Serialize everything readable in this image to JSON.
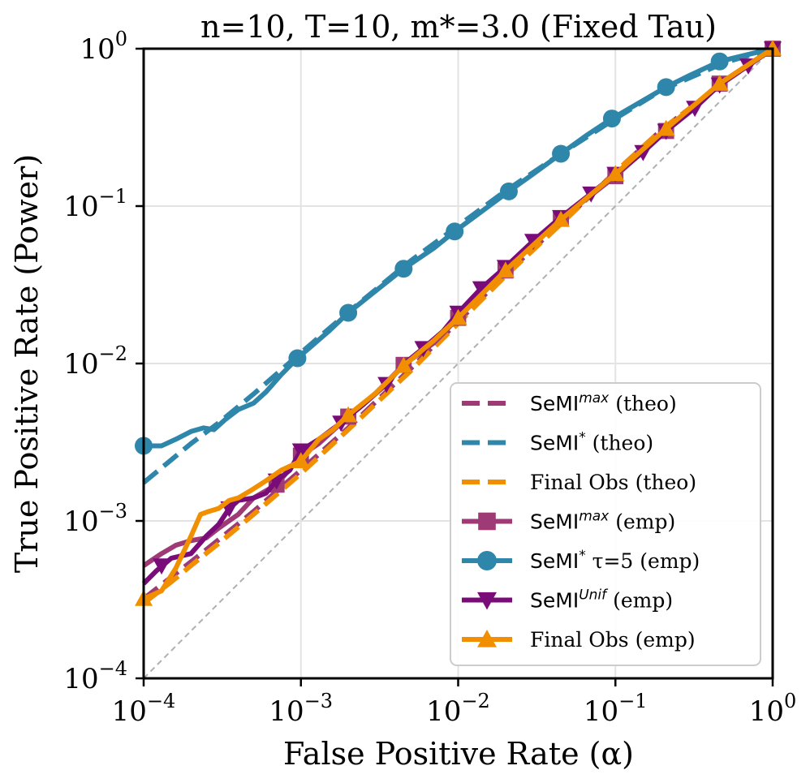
{
  "chart_data": {
    "type": "line",
    "title": "n=10, T=10, m*=3.0 (Fixed Tau)",
    "xlabel": "False Positive Rate (α)",
    "ylabel": "True Positive Rate (Power)",
    "xscale": "log",
    "yscale": "log",
    "xlim": [
      0.0001,
      1
    ],
    "ylim": [
      0.0001,
      1
    ],
    "grid": true,
    "legend_position": "lower-right",
    "x_ticks": [
      {
        "value": 0.0001,
        "base": "10",
        "exp": "−4"
      },
      {
        "value": 0.001,
        "base": "10",
        "exp": "−3"
      },
      {
        "value": 0.01,
        "base": "10",
        "exp": "−2"
      },
      {
        "value": 0.1,
        "base": "10",
        "exp": "−1"
      },
      {
        "value": 1,
        "base": "10",
        "exp": "0"
      }
    ],
    "y_ticks": [
      {
        "value": 0.0001,
        "base": "10",
        "exp": "−4"
      },
      {
        "value": 0.001,
        "base": "10",
        "exp": "−3"
      },
      {
        "value": 0.01,
        "base": "10",
        "exp": "−2"
      },
      {
        "value": 0.1,
        "base": "10",
        "exp": "−1"
      },
      {
        "value": 1,
        "base": "10",
        "exp": "0"
      }
    ],
    "diagonal": {
      "name": "random-guess",
      "color": "#b0b0b0",
      "dash": true
    },
    "series": [
      {
        "id": "semi-max-theo",
        "label_main": "SeMI",
        "label_sup": "max",
        "label_rest": " (theo)",
        "color": "#9e3a75",
        "dash": true,
        "marker": "none",
        "order": 0,
        "x": [
          0.0001,
          0.00015,
          0.0002,
          0.0003,
          0.0005,
          0.001,
          0.002,
          0.005,
          0.01,
          0.02,
          0.05,
          0.1,
          0.2,
          0.5,
          1
        ],
        "y": [
          0.00032,
          0.00044,
          0.00055,
          0.00076,
          0.00115,
          0.0021,
          0.0039,
          0.0093,
          0.0185,
          0.037,
          0.086,
          0.165,
          0.31,
          0.62,
          1
        ]
      },
      {
        "id": "semi-star-theo",
        "label_main": "SeMI",
        "label_sup": "*",
        "label_rest": " (theo)",
        "color": "#2e86ab",
        "dash": true,
        "marker": "none",
        "order": 1,
        "x": [
          0.0001,
          0.0002,
          0.0003,
          0.0005,
          0.001,
          0.002,
          0.005,
          0.01,
          0.02,
          0.05,
          0.1,
          0.2,
          0.5,
          1
        ],
        "y": [
          0.00175,
          0.0031,
          0.0042,
          0.0064,
          0.0117,
          0.0212,
          0.045,
          0.075,
          0.125,
          0.23,
          0.36,
          0.55,
          0.82,
          1
        ]
      },
      {
        "id": "final-obs-theo",
        "label_main": "Final Obs (theo)",
        "label_sup": "",
        "label_rest": "",
        "color": "#f18f01",
        "dash": true,
        "marker": "none",
        "order": 2,
        "x": [
          0.0001,
          0.00015,
          0.0002,
          0.0003,
          0.0005,
          0.001,
          0.002,
          0.005,
          0.01,
          0.02,
          0.05,
          0.1,
          0.2,
          0.5,
          1
        ],
        "y": [
          0.0003,
          0.00041,
          0.00052,
          0.00072,
          0.0011,
          0.002,
          0.0038,
          0.009,
          0.018,
          0.036,
          0.085,
          0.165,
          0.31,
          0.62,
          1
        ]
      },
      {
        "id": "semi-max-emp",
        "label_main": "SeMI",
        "label_sup": "max",
        "label_rest": " (emp)",
        "color": "#9e3a75",
        "dash": false,
        "marker": "square",
        "order": 3,
        "x": [
          0.0001,
          0.00013,
          0.00016,
          0.0002,
          0.00025,
          0.0003,
          0.0004,
          0.0005,
          0.0007,
          0.001,
          0.0013,
          0.002,
          0.003,
          0.0045,
          0.007,
          0.01,
          0.02,
          0.045,
          0.1,
          0.21,
          0.46,
          1
        ],
        "y": [
          0.00052,
          0.00062,
          0.0007,
          0.00075,
          0.00078,
          0.0009,
          0.0011,
          0.0014,
          0.0017,
          0.0026,
          0.0031,
          0.0046,
          0.0065,
          0.0098,
          0.0135,
          0.0195,
          0.039,
          0.083,
          0.155,
          0.3,
          0.6,
          1
        ],
        "marker_x": [
          0.0007,
          0.001,
          0.002,
          0.0045,
          0.01,
          0.02,
          0.045,
          0.1,
          0.21,
          0.46,
          1
        ],
        "marker_y": [
          0.0017,
          0.0026,
          0.0046,
          0.0098,
          0.0195,
          0.039,
          0.083,
          0.155,
          0.3,
          0.6,
          1
        ]
      },
      {
        "id": "semi-star-emp",
        "label_main": "SeMI",
        "label_sup": "*",
        "label_rest": " τ=5 (emp)",
        "color": "#2e86ab",
        "dash": false,
        "marker": "circle",
        "order": 4,
        "x": [
          0.0001,
          0.00013,
          0.00016,
          0.0002,
          0.00024,
          0.00028,
          0.00033,
          0.0004,
          0.0005,
          0.0006,
          0.00075,
          0.00095,
          0.0012,
          0.0015,
          0.002,
          0.003,
          0.0045,
          0.007,
          0.0095,
          0.014,
          0.021,
          0.03,
          0.045,
          0.065,
          0.095,
          0.14,
          0.21,
          0.3,
          0.46,
          0.7,
          1
        ],
        "y": [
          0.003,
          0.003,
          0.0033,
          0.0037,
          0.0039,
          0.0038,
          0.0044,
          0.0051,
          0.0056,
          0.0066,
          0.0085,
          0.0108,
          0.0132,
          0.016,
          0.021,
          0.029,
          0.04,
          0.054,
          0.069,
          0.092,
          0.124,
          0.16,
          0.215,
          0.28,
          0.36,
          0.45,
          0.57,
          0.68,
          0.83,
          0.92,
          1
        ],
        "marker_x": [
          0.0001,
          0.00095,
          0.002,
          0.0045,
          0.0095,
          0.021,
          0.045,
          0.095,
          0.21,
          0.46
        ],
        "marker_y": [
          0.003,
          0.0108,
          0.021,
          0.04,
          0.069,
          0.124,
          0.215,
          0.36,
          0.57,
          0.83
        ]
      },
      {
        "id": "semi-unif-emp",
        "label_main": "SeMI",
        "label_sup": "Unif",
        "label_rest": " (emp)",
        "color": "#7a0c7a",
        "dash": false,
        "marker": "triangle-down",
        "order": 5,
        "x": [
          0.0001,
          0.00012,
          0.00015,
          0.0002,
          0.00025,
          0.0003,
          0.00035,
          0.0004,
          0.0005,
          0.0006,
          0.0007,
          0.00085,
          0.001,
          0.0013,
          0.0018,
          0.0025,
          0.0035,
          0.0045,
          0.006,
          0.008,
          0.01,
          0.014,
          0.02,
          0.03,
          0.045,
          0.07,
          0.1,
          0.15,
          0.21,
          0.32,
          0.46,
          0.7,
          1
        ],
        "y": [
          0.0004,
          0.00048,
          0.00058,
          0.00062,
          0.0008,
          0.00095,
          0.0012,
          0.00135,
          0.0014,
          0.0015,
          0.0018,
          0.0021,
          0.0028,
          0.0033,
          0.0042,
          0.0055,
          0.0074,
          0.0099,
          0.0125,
          0.016,
          0.021,
          0.03,
          0.041,
          0.06,
          0.085,
          0.12,
          0.16,
          0.22,
          0.3,
          0.42,
          0.59,
          0.78,
          1
        ],
        "marker_x": [
          0.00013,
          0.00035,
          0.0007,
          0.001,
          0.0018,
          0.0035,
          0.006,
          0.01,
          0.014,
          0.02,
          0.03,
          0.045,
          0.07,
          0.1,
          0.15,
          0.21,
          0.32,
          0.46,
          0.7,
          1
        ],
        "marker_y": [
          0.00052,
          0.0012,
          0.0018,
          0.0028,
          0.0042,
          0.0074,
          0.0125,
          0.021,
          0.03,
          0.041,
          0.06,
          0.085,
          0.12,
          0.16,
          0.22,
          0.3,
          0.42,
          0.59,
          0.78,
          1
        ]
      },
      {
        "id": "final-obs-emp",
        "label_main": "Final Obs (emp)",
        "label_sup": "",
        "label_rest": "",
        "color": "#f18f01",
        "dash": false,
        "marker": "triangle-up",
        "order": 6,
        "x": [
          0.0001,
          0.00013,
          0.00016,
          0.0002,
          0.00023,
          0.00026,
          0.0003,
          0.00035,
          0.0004,
          0.0005,
          0.0006,
          0.00075,
          0.001,
          0.0013,
          0.0016,
          0.002,
          0.003,
          0.0045,
          0.007,
          0.01,
          0.02,
          0.045,
          0.1,
          0.21,
          0.46,
          1
        ],
        "y": [
          0.00032,
          0.00036,
          0.0005,
          0.0008,
          0.0011,
          0.00115,
          0.0012,
          0.00135,
          0.0014,
          0.0016,
          0.0018,
          0.0021,
          0.0024,
          0.0033,
          0.0038,
          0.0047,
          0.0065,
          0.0097,
          0.014,
          0.0195,
          0.039,
          0.082,
          0.16,
          0.31,
          0.6,
          1
        ],
        "marker_x": [
          0.0001,
          0.001,
          0.002,
          0.0045,
          0.01,
          0.02,
          0.045,
          0.1,
          0.21,
          0.46,
          1
        ],
        "marker_y": [
          0.00032,
          0.0024,
          0.0047,
          0.0097,
          0.0195,
          0.039,
          0.082,
          0.16,
          0.31,
          0.6,
          1
        ]
      }
    ]
  }
}
